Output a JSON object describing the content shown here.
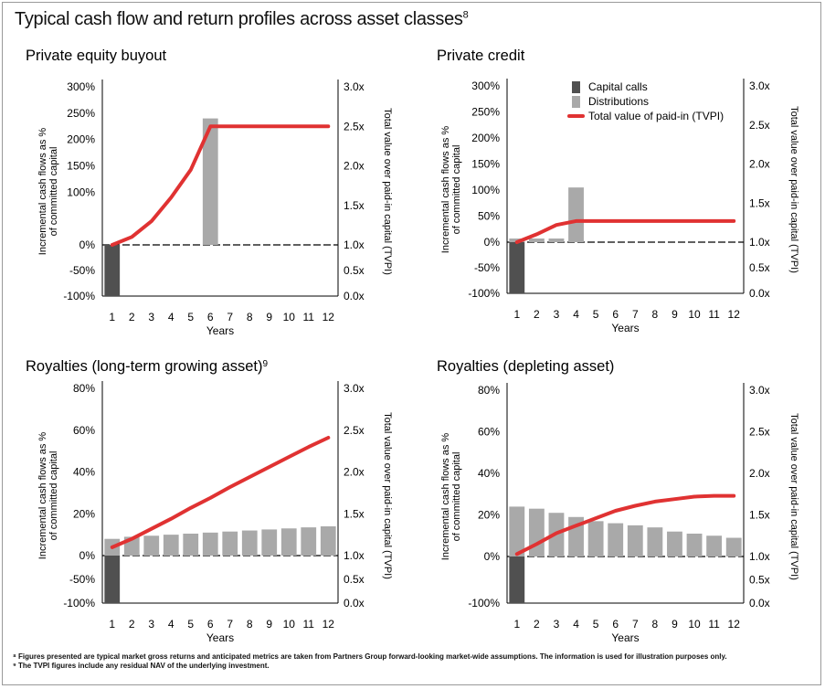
{
  "main_title": "Typical cash flow and return profiles across asset classes",
  "main_title_ref": "8",
  "legend": [
    {
      "name": "Capital calls",
      "color": "#505050",
      "kind": "bar"
    },
    {
      "name": "Distributions",
      "color": "#a9a9a9",
      "kind": "bar"
    },
    {
      "name": "Total value of paid-in (TVPI)",
      "color": "#e03232",
      "kind": "line"
    }
  ],
  "footnotes": {
    "note1": "⁸ Figures presented are typical market gross returns and anticipated metrics are taken from Partners Group forward-looking market-wide assumptions. The information is used for illustration purposes only.",
    "note2": "⁹ The TVPI figures include any residual NAV of the underlying investment."
  },
  "chart_data": [
    {
      "type": "bar",
      "title": "Private equity buyout",
      "title_ref": "",
      "xlabel": "Years",
      "ylabel_line1": "Incremental cash flows as %",
      "ylabel_line2": "of committed capital",
      "y2label": "Total value over paid-in capital (TVPI)",
      "categories": [
        "1",
        "2",
        "3",
        "4",
        "5",
        "6",
        "7",
        "8",
        "9",
        "10",
        "11",
        "12"
      ],
      "y_ticks": [
        -100,
        -50,
        0,
        100,
        150,
        200,
        250,
        300
      ],
      "y_tick_labels": [
        "-100%",
        "-50%",
        "0%",
        "100%",
        "150%",
        "200%",
        "250%",
        "300%"
      ],
      "y2_ticks": [
        0.0,
        0.5,
        1.0,
        1.5,
        2.0,
        2.5,
        3.0
      ],
      "y2_tick_labels": [
        "0.0x",
        "0.5x",
        "1.0x",
        "1.5x",
        "2.0x",
        "2.5x",
        "3.0x"
      ],
      "capital_calls": [
        -100,
        0,
        0,
        0,
        0,
        0,
        0,
        0,
        0,
        0,
        0,
        0
      ],
      "distributions": [
        0,
        0,
        0,
        0,
        0,
        240,
        0,
        0,
        0,
        0,
        0,
        0
      ],
      "tvpi": [
        1.0,
        1.1,
        1.3,
        1.6,
        1.95,
        2.5,
        2.5,
        2.5,
        2.5,
        2.5,
        2.5,
        2.5
      ],
      "legend": false
    },
    {
      "type": "bar",
      "title": "Private credit",
      "title_ref": "",
      "xlabel": "Years",
      "ylabel_line1": "Incremental cash flows as %",
      "ylabel_line2": "of committed capital",
      "y2label": "Total value over paid-in capital (TVPI)",
      "categories": [
        "1",
        "2",
        "3",
        "4",
        "5",
        "6",
        "7",
        "8",
        "9",
        "10",
        "11",
        "12"
      ],
      "y_ticks": [
        -100,
        -50,
        0,
        50,
        100,
        150,
        200,
        250,
        300
      ],
      "y_tick_labels": [
        "-100%",
        "-50%",
        "0%",
        "50%",
        "100%",
        "150%",
        "200%",
        "250%",
        "300%"
      ],
      "y2_ticks": [
        0.0,
        0.5,
        1.0,
        1.5,
        2.0,
        2.5,
        3.0
      ],
      "y2_tick_labels": [
        "0.0x",
        "0.5x",
        "1.0x",
        "1.5x",
        "2.0x",
        "2.5x",
        "3.0x"
      ],
      "capital_calls": [
        -100,
        0,
        0,
        0,
        0,
        0,
        0,
        0,
        0,
        0,
        0,
        0
      ],
      "distributions": [
        7,
        7,
        7,
        105,
        0,
        0,
        0,
        0,
        0,
        0,
        0,
        0
      ],
      "tvpi": [
        1.0,
        1.1,
        1.22,
        1.27,
        1.27,
        1.27,
        1.27,
        1.27,
        1.27,
        1.27,
        1.27,
        1.27
      ],
      "legend": true
    },
    {
      "type": "bar",
      "title": "Royalties (long-term growing asset)",
      "title_ref": "9",
      "xlabel": "Years",
      "ylabel_line1": "Incremental cash flows as %",
      "ylabel_line2": "of committed capital",
      "y2label": "Total value over paid-in capital (TVPI)",
      "categories": [
        "1",
        "2",
        "3",
        "4",
        "5",
        "6",
        "7",
        "8",
        "9",
        "10",
        "11",
        "12"
      ],
      "y_ticks": [
        -100,
        -50,
        0,
        20,
        40,
        60,
        80
      ],
      "y_tick_labels": [
        "-100%",
        "-50%",
        "0%",
        "20%",
        "40%",
        "60%",
        "80%"
      ],
      "y2_ticks": [
        0.0,
        0.5,
        1.0,
        1.5,
        2.0,
        2.5,
        3.0
      ],
      "y2_tick_labels": [
        "0.0x",
        "0.5x",
        "1.0x",
        "1.5x",
        "2.0x",
        "2.5x",
        "3.0x"
      ],
      "capital_calls": [
        -100,
        0,
        0,
        0,
        0,
        0,
        0,
        0,
        0,
        0,
        0,
        0
      ],
      "distributions": [
        8,
        9,
        9.5,
        10,
        10.5,
        11,
        11.5,
        12,
        12.5,
        13,
        13.5,
        14
      ],
      "tvpi": [
        1.1,
        1.2,
        1.32,
        1.44,
        1.57,
        1.69,
        1.82,
        1.94,
        2.06,
        2.18,
        2.3,
        2.41
      ],
      "legend": false
    },
    {
      "type": "bar",
      "title": "Royalties (depleting asset)",
      "title_ref": "",
      "xlabel": "Years",
      "ylabel_line1": "Incremental cash flows as %",
      "ylabel_line2": "of committed capital",
      "y2label": "Total value over paid-in capital (TVPI)",
      "categories": [
        "1",
        "2",
        "3",
        "4",
        "5",
        "6",
        "7",
        "8",
        "9",
        "10",
        "11",
        "12"
      ],
      "y_ticks": [
        -100,
        0,
        20,
        40,
        60,
        80
      ],
      "y_tick_labels": [
        "-100%",
        "0%",
        "20%",
        "40%",
        "60%",
        "80%"
      ],
      "y2_ticks": [
        0.0,
        0.5,
        1.0,
        1.5,
        2.0,
        2.5,
        3.0
      ],
      "y2_tick_labels": [
        "0.0x",
        "0.5x",
        "1.0x",
        "1.5x",
        "2.0x",
        "2.5x",
        "3.0x"
      ],
      "capital_calls": [
        -100,
        0,
        0,
        0,
        0,
        0,
        0,
        0,
        0,
        0,
        0,
        0
      ],
      "distributions": [
        24,
        23,
        21,
        19,
        17,
        16,
        15,
        14,
        12,
        11,
        10,
        9
      ],
      "tvpi": [
        1.03,
        1.15,
        1.28,
        1.37,
        1.46,
        1.55,
        1.61,
        1.66,
        1.69,
        1.72,
        1.73,
        1.73
      ],
      "legend": false
    }
  ]
}
